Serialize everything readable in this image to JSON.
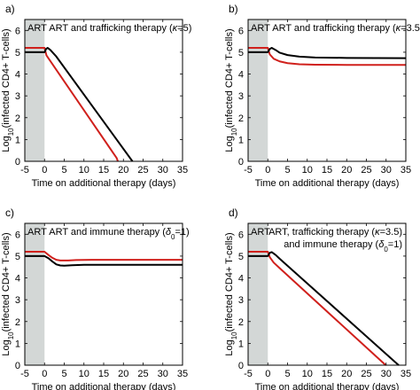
{
  "colors": {
    "red_series": "#d0201c",
    "black_series": "#000000",
    "art_shade": "#d3d7d6"
  },
  "chart_data": [
    {
      "type": "line",
      "panel": "a)",
      "annotation_html": "ART and trafficking therapy (<tspan font-style='italic'>κ</tspan>=5)",
      "annotation": "ART and trafficking therapy (κ=5)",
      "shaded_label": "ART",
      "shaded_range": [
        -5,
        0
      ],
      "xlabel": "Time on additional therapy (days)",
      "ylabel": "Log10(infected CD4+ T-cells)",
      "xlim": [
        -5,
        35
      ],
      "ylim": [
        0,
        6.5
      ],
      "xticks": [
        "-5",
        "0",
        "5",
        "10",
        "15",
        "20",
        "25",
        "30",
        "35"
      ],
      "yticks": [
        "0",
        "1",
        "2",
        "3",
        "4",
        "5",
        "6"
      ],
      "series": [
        {
          "color": "red",
          "x": [
            -5,
            0,
            0.5,
            18.3,
            18.6
          ],
          "y": [
            5.2,
            5.2,
            4.85,
            0.15,
            0
          ]
        },
        {
          "color": "black",
          "x": [
            -5,
            0,
            0.4,
            0.8,
            1.5,
            3,
            22.3
          ],
          "y": [
            5.0,
            5.0,
            5.15,
            5.2,
            5.1,
            4.8,
            0
          ]
        }
      ]
    },
    {
      "type": "line",
      "panel": "b)",
      "annotation_html": "ART and trafficking therapy (<tspan font-style='italic'>κ</tspan>=3.5)",
      "annotation": "ART and trafficking therapy (κ=3.5)",
      "shaded_label": "ART",
      "shaded_range": [
        -5,
        0
      ],
      "xlabel": "Time on additional therapy (days)",
      "ylabel": "Log10(infected CD4+ T-cells)",
      "xlim": [
        -5,
        35
      ],
      "ylim": [
        0,
        6.5
      ],
      "xticks": [
        "-5",
        "0",
        "5",
        "10",
        "15",
        "20",
        "25",
        "30",
        "35"
      ],
      "yticks": [
        "0",
        "1",
        "2",
        "3",
        "4",
        "5",
        "6"
      ],
      "series": [
        {
          "color": "red",
          "x": [
            -5,
            0,
            0.5,
            1.5,
            3,
            5,
            8,
            12,
            20,
            35
          ],
          "y": [
            5.2,
            5.2,
            4.9,
            4.7,
            4.58,
            4.5,
            4.45,
            4.43,
            4.42,
            4.42
          ]
        },
        {
          "color": "black",
          "x": [
            -5,
            0,
            0.5,
            1,
            2,
            3,
            5,
            8,
            12,
            20,
            35
          ],
          "y": [
            5.0,
            5.0,
            5.15,
            5.2,
            5.1,
            4.98,
            4.87,
            4.8,
            4.76,
            4.74,
            4.73
          ]
        }
      ]
    },
    {
      "type": "line",
      "panel": "c)",
      "annotation_html": "ART and immune therapy (<tspan font-style='italic'>δ</tspan><tspan baseline-shift='sub' font-size='8'>0</tspan>=1)",
      "annotation": "ART and immune therapy (δ0=1)",
      "shaded_label": "ART",
      "shaded_range": [
        -5,
        0
      ],
      "xlabel": "Time on additional therapy (days)",
      "ylabel": "Log10(infected CD4+ T-cells)",
      "xlim": [
        -5,
        35
      ],
      "ylim": [
        0,
        6.5
      ],
      "xticks": [
        "-5",
        "0",
        "5",
        "10",
        "15",
        "20",
        "25",
        "30",
        "35"
      ],
      "yticks": [
        "0",
        "1",
        "2",
        "3",
        "4",
        "5",
        "6"
      ],
      "series": [
        {
          "color": "red",
          "x": [
            -5,
            0,
            1,
            2,
            3,
            4,
            6,
            8,
            12,
            20,
            35
          ],
          "y": [
            5.2,
            5.2,
            5.05,
            4.92,
            4.83,
            4.8,
            4.8,
            4.82,
            4.83,
            4.83,
            4.83
          ]
        },
        {
          "color": "black",
          "x": [
            -5,
            0,
            1,
            2,
            3,
            4,
            5,
            7,
            10,
            15,
            35
          ],
          "y": [
            5.0,
            5.0,
            4.9,
            4.75,
            4.62,
            4.57,
            4.56,
            4.58,
            4.6,
            4.6,
            4.6
          ]
        }
      ]
    },
    {
      "type": "line",
      "panel": "d)",
      "annotation_html": "ART, trafficking therapy (<tspan font-style='italic'>κ</tspan>=3.5)",
      "annotation": "ART, trafficking therapy (κ=3.5)",
      "annotation2_html": "and immune therapy (<tspan font-style='italic'>δ</tspan><tspan baseline-shift='sub' font-size='8'>0</tspan>=1)",
      "annotation2": "and immune therapy (δ0=1)",
      "shaded_label": "ART",
      "shaded_range": [
        -5,
        0
      ],
      "xlabel": "Time on additional therapy (days)",
      "ylabel": "Log10(infected CD4+ T-cells)",
      "xlim": [
        -5,
        35
      ],
      "ylim": [
        0,
        6.5
      ],
      "xticks": [
        "-5",
        "0",
        "5",
        "10",
        "15",
        "20",
        "25",
        "30",
        "35"
      ],
      "yticks": [
        "0",
        "1",
        "2",
        "3",
        "4",
        "5",
        "6"
      ],
      "series": [
        {
          "color": "red",
          "x": [
            -5,
            0,
            0.5,
            1.5,
            3,
            29.6,
            30
          ],
          "y": [
            5.2,
            5.2,
            4.95,
            4.7,
            4.45,
            0.05,
            0
          ]
        },
        {
          "color": "black",
          "x": [
            -5,
            0,
            0.5,
            1,
            2,
            3,
            4,
            32.8,
            33.2
          ],
          "y": [
            5.0,
            5.0,
            5.15,
            5.18,
            5.05,
            4.88,
            4.72,
            0.06,
            0
          ]
        }
      ]
    }
  ]
}
